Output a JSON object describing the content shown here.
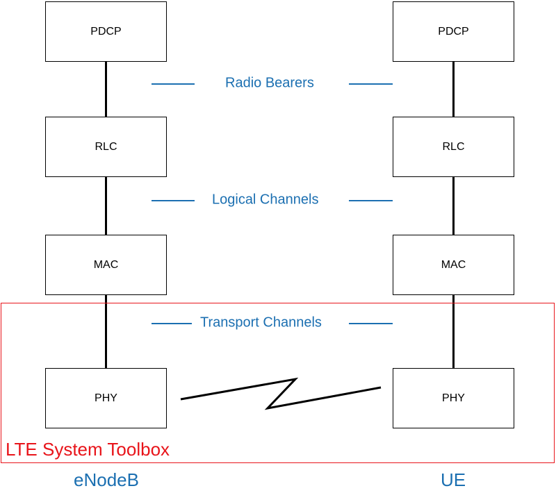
{
  "left_stack": {
    "layers": [
      "PDCP",
      "RLC",
      "MAC",
      "PHY"
    ],
    "label": "eNodeB"
  },
  "right_stack": {
    "layers": [
      "PDCP",
      "RLC",
      "MAC",
      "PHY"
    ],
    "label": "UE"
  },
  "channels": [
    "Radio Bearers",
    "Logical Channels",
    "Transport Channels"
  ],
  "toolbox": {
    "label": "LTE System Toolbox"
  },
  "colors": {
    "channel_text": "#1b6fb1",
    "toolbox_border": "#e8141a",
    "box_border": "#000000"
  }
}
